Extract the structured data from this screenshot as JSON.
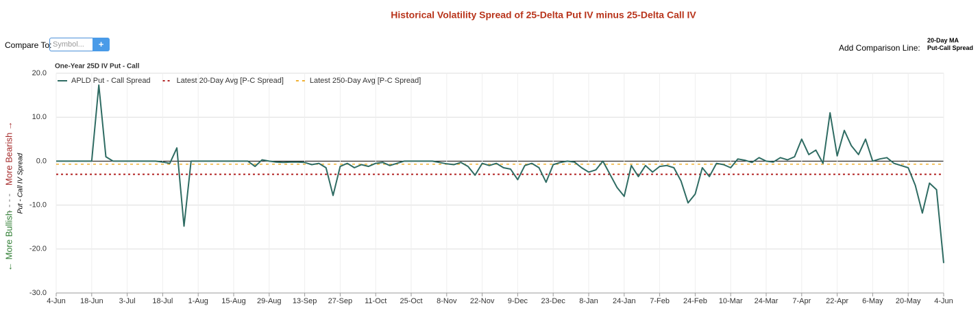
{
  "controls": {
    "compare_label": "Compare To:",
    "symbol_placeholder": "Symbol...",
    "add_button": "+",
    "comparison_label": "Add Comparison Line:",
    "comparison_option_1": "20-Day MA",
    "comparison_option_2": "Put-Call Spread"
  },
  "chart_data": {
    "type": "line",
    "title": "Historical Volatility Spread of 25-Delta Put IV minus 25-Delta Call IV",
    "subtitle": "One-Year 25D IV Put - Call",
    "y_label_bullish": "← More Bullish",
    "y_label_separator": "- - - -",
    "y_label_bearish": "More Bearish →",
    "ylabel": "Put - Call IV Spread",
    "categories": [
      "4-Jun",
      null,
      null,
      null,
      null,
      "18-Jun",
      null,
      null,
      null,
      null,
      "3-Jul",
      null,
      null,
      null,
      null,
      "18-Jul",
      null,
      null,
      null,
      null,
      "1-Aug",
      null,
      null,
      null,
      null,
      "15-Aug",
      null,
      null,
      null,
      null,
      "29-Aug",
      null,
      null,
      null,
      null,
      "13-Sep",
      null,
      null,
      null,
      null,
      "27-Sep",
      null,
      null,
      null,
      null,
      "11-Oct",
      null,
      null,
      null,
      null,
      "25-Oct",
      null,
      null,
      null,
      null,
      "8-Nov",
      null,
      null,
      null,
      null,
      "22-Nov",
      null,
      null,
      null,
      null,
      "9-Dec",
      null,
      null,
      null,
      null,
      "23-Dec",
      null,
      null,
      null,
      null,
      "8-Jan",
      null,
      null,
      null,
      null,
      "24-Jan",
      null,
      null,
      null,
      null,
      "7-Feb",
      null,
      null,
      null,
      null,
      "24-Feb",
      null,
      null,
      null,
      null,
      "10-Mar",
      null,
      null,
      null,
      null,
      "24-Mar",
      null,
      null,
      null,
      null,
      "7-Apr",
      null,
      null,
      null,
      null,
      "22-Apr",
      null,
      null,
      null,
      null,
      "6-May",
      null,
      null,
      null,
      null,
      "20-May",
      null,
      null,
      null,
      null,
      "4-Jun"
    ],
    "series": [
      {
        "name": "APLD Put - Call Spread",
        "color": "#2e6b62",
        "values": [
          0,
          0,
          0,
          0,
          0,
          0,
          17.3,
          1.0,
          0,
          0,
          0,
          0,
          0,
          0,
          0,
          -0.2,
          -0.5,
          3.0,
          -14.8,
          0,
          0,
          0,
          0,
          0,
          0,
          0,
          0,
          0,
          -1.2,
          0.3,
          0,
          -0.2,
          -0.3,
          -0.2,
          -0.2,
          -0.3,
          -0.8,
          -0.5,
          -1.5,
          -7.8,
          -1.2,
          -0.5,
          -1.5,
          -0.8,
          -1.2,
          -0.5,
          -0.3,
          -1.0,
          -0.5,
          0,
          0,
          0,
          0,
          0,
          -0.3,
          -0.6,
          -0.8,
          -0.3,
          -1.2,
          -3.2,
          -0.5,
          -1.0,
          -0.5,
          -1.5,
          -1.8,
          -4.2,
          -1.0,
          -0.5,
          -1.5,
          -4.8,
          -0.8,
          -0.3,
          0,
          -0.2,
          -1.5,
          -2.5,
          -2.0,
          0,
          -3.0,
          -6.0,
          -8.0,
          -1.0,
          -3.5,
          -1.0,
          -2.5,
          -1.2,
          -1.0,
          -1.5,
          -4.5,
          -9.5,
          -7.5,
          -1.5,
          -3.5,
          -0.5,
          -0.8,
          -1.5,
          0.5,
          0.2,
          -0.3,
          0.8,
          0,
          -0.2,
          0.8,
          0.3,
          1.0,
          5.0,
          1.5,
          2.5,
          -0.5,
          11.0,
          1.2,
          7.0,
          3.5,
          1.5,
          5.0,
          0,
          0.5,
          0.8,
          -0.5,
          -1.0,
          -1.5,
          -5.5,
          -11.8,
          -5.0,
          -6.5,
          -23.2
        ]
      }
    ],
    "reference_lines": [
      {
        "name": "Latest 20-Day Avg [P-C Spread]",
        "color": "#b22222",
        "value": -3.0
      },
      {
        "name": "Latest 250-Day Avg [P-C Spread]",
        "color": "#f0b030",
        "value": -0.7
      }
    ],
    "ylim": [
      -30,
      20
    ],
    "yticks": [
      {
        "value": -30,
        "label": "-30.0"
      },
      {
        "value": -20,
        "label": "-20.0"
      },
      {
        "value": -10,
        "label": "-10.0"
      },
      {
        "value": 0,
        "label": "0.0"
      },
      {
        "value": 10,
        "label": "10.0"
      },
      {
        "value": 20,
        "label": "20.0"
      }
    ],
    "grid": true,
    "legend": "top-left"
  }
}
